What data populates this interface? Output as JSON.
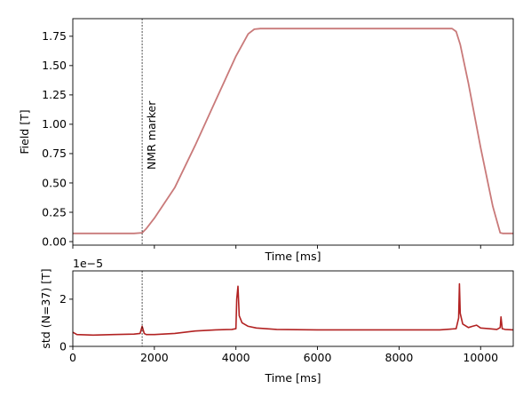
{
  "chart_data": [
    {
      "type": "line",
      "xlabel": "Time [ms]",
      "ylabel": "Field [T]",
      "xlim": [
        0,
        10800
      ],
      "ylim": [
        -0.03,
        1.9
      ],
      "x_ticks": [],
      "y_ticks": [
        "0.00",
        "0.25",
        "0.50",
        "0.75",
        "1.00",
        "1.25",
        "1.50",
        "1.75"
      ],
      "annotation": {
        "text": "NMR marker",
        "x": 1700
      },
      "series": [
        {
          "color": "#c97a7a",
          "x": [
            0,
            1500,
            1700,
            1800,
            2000,
            2500,
            3000,
            3500,
            4000,
            4300,
            4450,
            4600,
            5000,
            6000,
            7000,
            8000,
            9000,
            9300,
            9400,
            9500,
            9700,
            10000,
            10300,
            10480,
            10540,
            10800
          ],
          "y": [
            0.07,
            0.07,
            0.075,
            0.11,
            0.2,
            0.46,
            0.82,
            1.2,
            1.58,
            1.77,
            1.81,
            1.815,
            1.815,
            1.815,
            1.815,
            1.815,
            1.815,
            1.815,
            1.79,
            1.68,
            1.35,
            0.8,
            0.3,
            0.075,
            0.07,
            0.07
          ]
        }
      ]
    },
    {
      "type": "line",
      "xlabel": "Time [ms]",
      "ylabel": "std (N=37) [T]",
      "offset_text": "1e−5",
      "xlim": [
        0,
        10800
      ],
      "ylim": [
        0,
        3.2
      ],
      "y_scale_exponent": -5,
      "x_ticks": [
        "0",
        "2000",
        "4000",
        "6000",
        "8000",
        "10000"
      ],
      "y_ticks": [
        "0",
        "2"
      ],
      "series": [
        {
          "color": "#b22222",
          "x": [
            0,
            100,
            500,
            1000,
            1500,
            1650,
            1700,
            1750,
            1800,
            2000,
            2500,
            3000,
            3500,
            3900,
            4000,
            4020,
            4050,
            4080,
            4150,
            4300,
            4500,
            5000,
            6000,
            7000,
            8000,
            9000,
            9400,
            9460,
            9480,
            9500,
            9560,
            9700,
            9800,
            9900,
            10000,
            10200,
            10400,
            10480,
            10500,
            10530,
            10600,
            10800
          ],
          "y": [
            0.6,
            0.5,
            0.48,
            0.5,
            0.52,
            0.55,
            0.85,
            0.55,
            0.5,
            0.5,
            0.55,
            0.65,
            0.7,
            0.72,
            0.75,
            2.0,
            2.55,
            1.3,
            1.0,
            0.85,
            0.78,
            0.72,
            0.7,
            0.7,
            0.7,
            0.7,
            0.75,
            1.2,
            2.65,
            1.4,
            0.95,
            0.8,
            0.85,
            0.9,
            0.78,
            0.75,
            0.72,
            0.8,
            1.25,
            0.75,
            0.72,
            0.7
          ]
        }
      ]
    }
  ]
}
